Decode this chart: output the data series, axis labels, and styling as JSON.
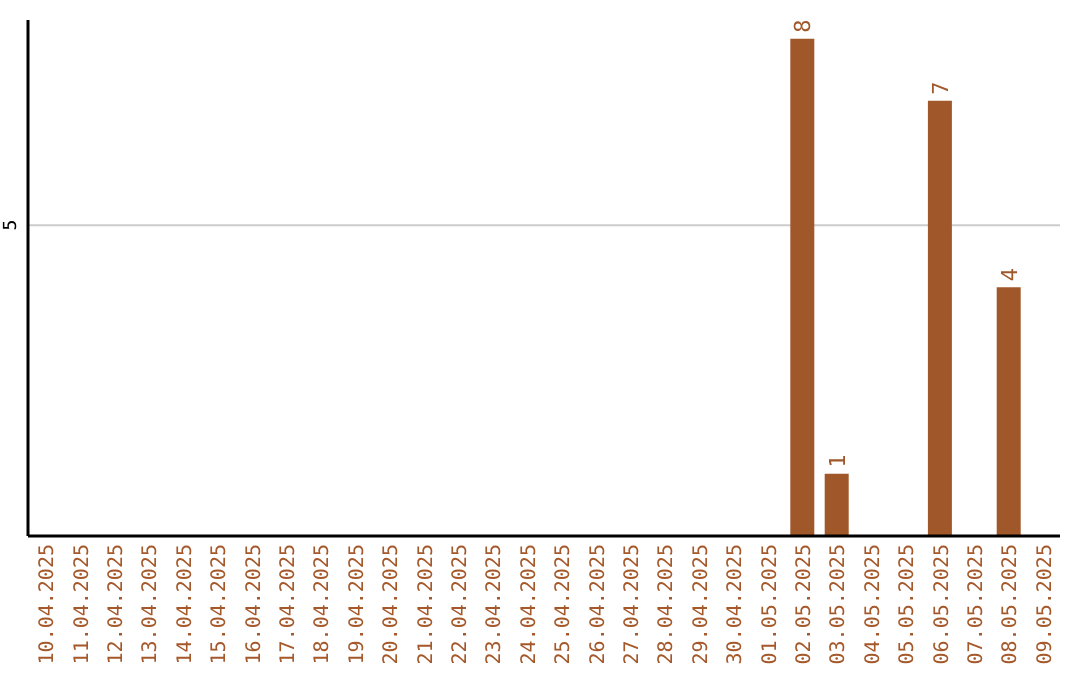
{
  "chart_data": {
    "type": "bar",
    "categories": [
      "10.04.2025",
      "11.04.2025",
      "12.04.2025",
      "13.04.2025",
      "14.04.2025",
      "15.04.2025",
      "16.04.2025",
      "17.04.2025",
      "18.04.2025",
      "19.04.2025",
      "20.04.2025",
      "21.04.2025",
      "22.04.2025",
      "23.04.2025",
      "24.04.2025",
      "25.04.2025",
      "26.04.2025",
      "27.04.2025",
      "28.04.2025",
      "29.04.2025",
      "30.04.2025",
      "01.05.2025",
      "02.05.2025",
      "03.05.2025",
      "04.05.2025",
      "05.05.2025",
      "06.05.2025",
      "07.05.2025",
      "08.05.2025",
      "09.05.2025"
    ],
    "values": [
      null,
      null,
      null,
      null,
      null,
      null,
      null,
      null,
      null,
      null,
      null,
      null,
      null,
      null,
      null,
      null,
      null,
      null,
      null,
      null,
      null,
      null,
      8,
      1,
      null,
      null,
      7,
      null,
      4,
      null
    ],
    "color": "#a0582a",
    "ylim": [
      0,
      8.3
    ],
    "yticks": [
      5
    ],
    "grid": "y",
    "data_labels": true
  }
}
